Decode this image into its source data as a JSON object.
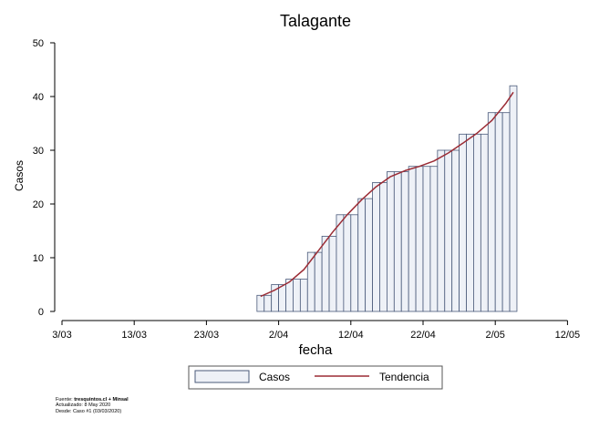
{
  "chart_data": {
    "type": "bar",
    "title": "Talagante",
    "xlabel": "fecha",
    "ylabel": "Casos",
    "ylim": [
      0,
      50
    ],
    "yticks": [
      0,
      10,
      20,
      30,
      40,
      50
    ],
    "x_start": "2020-03-03",
    "xticks": [
      "3/03",
      "13/03",
      "23/03",
      "2/04",
      "12/04",
      "22/04",
      "2/05",
      "12/05"
    ],
    "legend_position": "bottom",
    "series": [
      {
        "name": "Casos",
        "kind": "bar",
        "color": "#eef1f7",
        "edge_color": "#4a5a7a",
        "dates": [
          "30/03",
          "31/03",
          "1/04",
          "2/04",
          "3/04",
          "4/04",
          "5/04",
          "6/04",
          "7/04",
          "8/04",
          "9/04",
          "10/04",
          "11/04",
          "12/04",
          "13/04",
          "14/04",
          "15/04",
          "16/04",
          "17/04",
          "18/04",
          "19/04",
          "20/04",
          "21/04",
          "22/04",
          "23/04",
          "24/04",
          "25/04",
          "26/04",
          "27/04",
          "28/04",
          "29/04",
          "30/04",
          "1/05",
          "2/05",
          "3/05",
          "4/05"
        ],
        "values": [
          3,
          3,
          5,
          5,
          6,
          6,
          6,
          11,
          11,
          14,
          14,
          18,
          18,
          18,
          21,
          21,
          24,
          24,
          26,
          26,
          26,
          27,
          27,
          27,
          27,
          30,
          30,
          30,
          33,
          33,
          33,
          33,
          37,
          37,
          37,
          42
        ]
      },
      {
        "name": "Tendencia",
        "kind": "line",
        "color": "#9b2c35",
        "dates": [
          "30/03",
          "1/04",
          "3/04",
          "5/04",
          "7/04",
          "9/04",
          "11/04",
          "13/04",
          "15/04",
          "17/04",
          "19/04",
          "21/04",
          "23/04",
          "25/04",
          "27/04",
          "29/04",
          "1/05",
          "3/05",
          "4/05"
        ],
        "values": [
          2.8,
          4.0,
          5.5,
          7.8,
          11.3,
          14.8,
          18.0,
          20.8,
          23.2,
          25.1,
          26.2,
          27.0,
          28.0,
          29.5,
          31.3,
          33.2,
          35.5,
          38.8,
          40.8
        ]
      }
    ]
  },
  "source": {
    "label": "Fuente:",
    "sources": "tresquintos.cl + Minsal",
    "updated": "Actualizado: 8 May 2020",
    "since": "Desde: Caso #1  (03/03/2020)"
  }
}
